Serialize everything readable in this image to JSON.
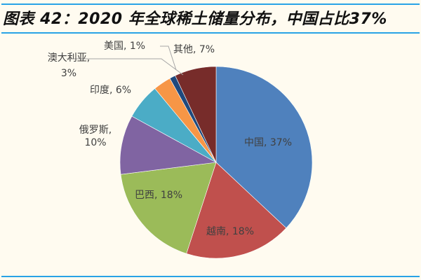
{
  "title": "图表 42：2020 年全球稀土储量分布，中国占比37%",
  "chart_data": {
    "type": "pie",
    "title": "2020 年全球稀土储量分布，中国占比37%",
    "categories": [
      "中国",
      "越南",
      "巴西",
      "俄罗斯",
      "印度",
      "澳大利亚",
      "美国",
      "其他"
    ],
    "values": [
      37,
      18,
      18,
      10,
      6,
      3,
      1,
      7
    ],
    "colors": [
      "#4f81bd",
      "#c0504d",
      "#9bbb59",
      "#8064a2",
      "#4bacc6",
      "#f79646",
      "#1f497d",
      "#772c2a"
    ],
    "unit": "%",
    "start_angle": 0,
    "direction": "clockwise",
    "legend": "none (data labels)"
  },
  "labels": {
    "china": "中国, 37%",
    "vietnam": "越南, 18%",
    "brazil": "巴西, 18%",
    "russia_name": "俄罗斯,",
    "russia_pct": "10%",
    "india": "印度, 6%",
    "australia_name": "澳大利亚,",
    "australia_pct": "3%",
    "usa": "美国, 1%",
    "other": "其他, 7%"
  }
}
